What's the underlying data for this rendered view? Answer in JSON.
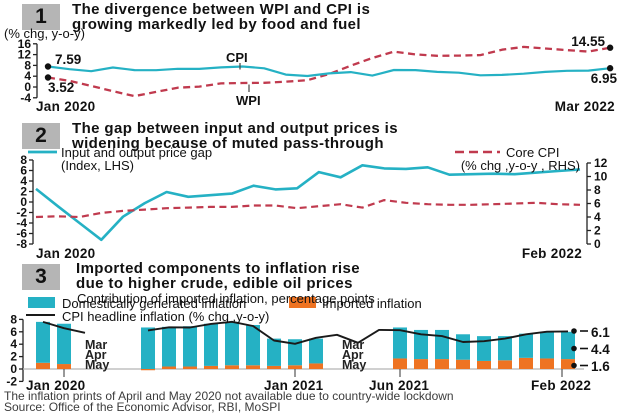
{
  "colors": {
    "teal": "#25b1c4",
    "red": "#c03a4e",
    "orange": "#ee7322",
    "black": "#1a1a1a",
    "box_gray": "#b5b5b5",
    "baseline_gray": "#b5b5b5"
  },
  "footer": {
    "note": "The inflation prints of April and May 2020 not available due to country-wide lockdown",
    "source": "Source: Office of the Economic Advisor, RBI, MoSPI"
  },
  "chart_data": [
    {
      "type": "line",
      "panel_number": "1",
      "title_lines": [
        "The divergence between WPI and CPI is",
        "growing markedly led by food and fuel"
      ],
      "unit": "(% chg, y-o-y)",
      "x_start_label": "Jan 2020",
      "x_end_label": "Mar 2022",
      "months": [
        "Jan 2020",
        "Feb 2020",
        "Mar 2020",
        "Apr 2020",
        "May 2020",
        "Jun 2020",
        "Jul 2020",
        "Aug 2020",
        "Sep 2020",
        "Oct 2020",
        "Nov 2020",
        "Dec 2020",
        "Jan 2021",
        "Feb 2021",
        "Mar 2021",
        "Apr 2021",
        "May 2021",
        "Jun 2021",
        "Jul 2021",
        "Aug 2021",
        "Sep 2021",
        "Oct 2021",
        "Nov 2021",
        "Dec 2021",
        "Jan 2022",
        "Feb 2022",
        "Mar 2022"
      ],
      "yticks": [
        16,
        12,
        8,
        4,
        0,
        -4
      ],
      "ylim": [
        -4,
        16
      ],
      "grid": false,
      "series": [
        {
          "name": "CPI",
          "color_key": "teal",
          "dash": false,
          "values": [
            7.59,
            6.58,
            5.84,
            7.22,
            6.27,
            6.23,
            6.73,
            6.69,
            7.27,
            7.61,
            6.93,
            4.59,
            4.06,
            5.03,
            5.52,
            4.23,
            6.3,
            6.26,
            5.59,
            5.3,
            4.35,
            4.48,
            4.91,
            5.59,
            6.01,
            6.07,
            6.95
          ]
        },
        {
          "name": "WPI",
          "color_key": "red",
          "dash": true,
          "values": [
            3.52,
            2.26,
            0.42,
            -1.57,
            -3.37,
            -1.81,
            -0.25,
            0.16,
            1.32,
            1.48,
            1.55,
            1.95,
            2.51,
            4.83,
            7.89,
            10.74,
            13.11,
            12.07,
            11.57,
            11.64,
            11.8,
            13.83,
            14.87,
            14.27,
            13.68,
            13.11,
            14.55
          ]
        }
      ],
      "annotations": {
        "start_cpi": "7.59",
        "start_wpi": "3.52",
        "end_wpi": "14.55",
        "end_cpi": "6.95",
        "cpi_label": "CPI",
        "wpi_label": "WPI"
      }
    },
    {
      "type": "line-dual-axis",
      "panel_number": "2",
      "title_lines": [
        "The gap between input and output prices is",
        "widening because of muted pass-through"
      ],
      "legend_left": {
        "label": "Input and output price gap",
        "sublabel": "(Index, LHS)"
      },
      "legend_right": {
        "label": "Core CPI",
        "sublabel": "(% chg ,y-o-y , RHS)"
      },
      "x_start_label": "Jan 2020",
      "x_end_label": "Feb 2022",
      "months": [
        "Jan 2020",
        "Feb 2020",
        "Mar 2020",
        "Apr 2020",
        "May 2020",
        "Jun 2020",
        "Jul 2020",
        "Aug 2020",
        "Sep 2020",
        "Oct 2020",
        "Nov 2020",
        "Dec 2020",
        "Jan 2021",
        "Feb 2021",
        "Mar 2021",
        "Apr 2021",
        "May 2021",
        "Jun 2021",
        "Jul 2021",
        "Aug 2021",
        "Sep 2021",
        "Oct 2021",
        "Nov 2021",
        "Dec 2021",
        "Jan 2022",
        "Feb 2022"
      ],
      "left_yticks": [
        8,
        6,
        4,
        2,
        0,
        -2,
        -4,
        -6,
        -8
      ],
      "left_ylim": [
        -8,
        8
      ],
      "right_yticks": [
        12,
        10,
        8,
        6,
        4,
        2,
        0
      ],
      "right_ylim": [
        0,
        12
      ],
      "grid": false,
      "series": [
        {
          "name": "Input and output price gap",
          "axis": "left",
          "color_key": "teal",
          "dash": false,
          "values": [
            2.5,
            -0.8,
            -4.0,
            -7.2,
            -2.8,
            -0.2,
            1.9,
            1.0,
            1.3,
            1.6,
            3.1,
            2.4,
            2.6,
            5.7,
            4.7,
            7.0,
            6.4,
            6.3,
            6.6,
            5.2,
            5.3,
            5.4,
            5.3,
            5.6,
            5.9,
            6.2
          ]
        },
        {
          "name": "Core CPI",
          "axis": "right",
          "color_key": "red",
          "dash": true,
          "values": [
            4.0,
            4.1,
            4.0,
            4.6,
            4.9,
            5.1,
            5.3,
            5.4,
            5.5,
            5.5,
            5.7,
            5.7,
            5.3,
            5.6,
            5.9,
            5.4,
            6.5,
            6.1,
            5.9,
            5.8,
            5.8,
            5.9,
            6.0,
            6.1,
            5.9,
            5.8
          ]
        }
      ]
    },
    {
      "type": "bar-line",
      "panel_number": "3",
      "title_lines": [
        "Imported components to inflation rise",
        "due to higher crude, edible oil prices"
      ],
      "subtitle": "Contribution of imported inflation, percentage points",
      "legend": [
        {
          "label": "Domestically generated inflation",
          "color_key": "teal"
        },
        {
          "label": "Imported inflation",
          "color_key": "orange"
        },
        {
          "label": "CPI headline inflation (% chg ,y-o-y)",
          "color_key": "black",
          "swatch": "line"
        }
      ],
      "yticks": [
        8,
        6,
        4,
        2,
        0,
        -2
      ],
      "ylim": [
        -2,
        8
      ],
      "grid": false,
      "months": [
        "Jan 2020",
        "Feb 2020",
        "Mar 2020",
        "Apr 2020",
        "May 2020",
        "Jun 2020",
        "Jul 2020",
        "Aug 2020",
        "Sep 2020",
        "Oct 2020",
        "Nov 2020",
        "Dec 2020",
        "Jan 2021",
        "Feb 2021",
        "Mar 2021",
        "Apr 2021",
        "May 2021",
        "Jun 2021",
        "Jul 2021",
        "Aug 2021",
        "Sep 2021",
        "Oct 2021",
        "Nov 2021",
        "Dec 2021",
        "Jan 2022",
        "Feb 2022"
      ],
      "bars": {
        "imported": [
          1.0,
          0.8,
          null,
          null,
          null,
          -0.2,
          0.4,
          0.4,
          0.5,
          0.6,
          0.6,
          0.5,
          0.6,
          0.9,
          null,
          null,
          null,
          1.7,
          1.6,
          1.6,
          1.5,
          1.3,
          1.4,
          1.8,
          1.7,
          1.6
        ],
        "domestic": [
          6.6,
          6.5,
          null,
          null,
          null,
          6.7,
          6.4,
          6.5,
          6.8,
          7.0,
          6.5,
          4.4,
          4.2,
          4.0,
          null,
          null,
          null,
          5.0,
          4.7,
          4.7,
          4.1,
          4.0,
          3.9,
          3.9,
          4.3,
          4.4
        ]
      },
      "line_cpi": [
        7.59,
        6.58,
        5.84,
        null,
        null,
        6.23,
        6.73,
        6.69,
        7.27,
        7.61,
        6.93,
        4.59,
        4.06,
        5.03,
        5.52,
        4.23,
        6.3,
        6.26,
        5.59,
        5.3,
        4.35,
        4.48,
        4.91,
        5.59,
        6.01,
        6.07
      ],
      "gap_label": [
        "Mar",
        "Apr",
        "May"
      ],
      "x_tick_labels": [
        {
          "label": "Jan 2020",
          "index": 0
        },
        {
          "label": "Jan 2021",
          "index": 12
        },
        {
          "label": "Jun 2021",
          "index": 17
        },
        {
          "label": "Feb 2022",
          "index": 25
        }
      ],
      "end_labels": [
        "6.1",
        "4.4",
        "1.6"
      ]
    }
  ]
}
